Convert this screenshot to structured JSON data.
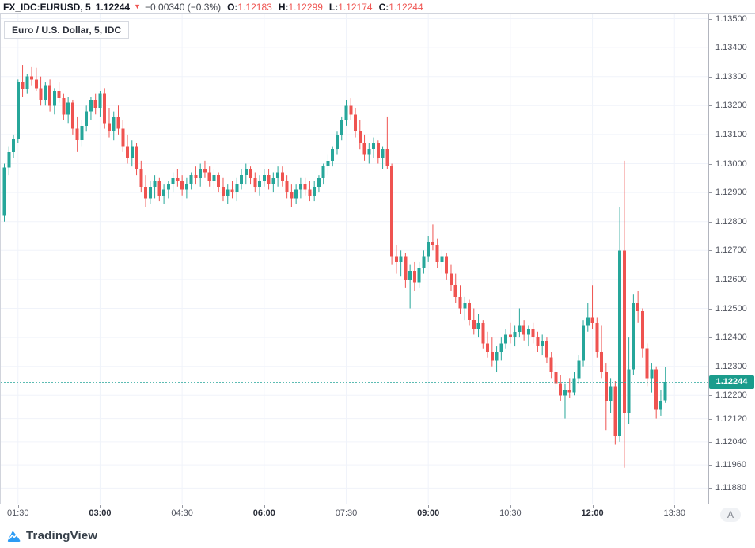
{
  "header": {
    "symbol": "FX_IDC:EURUSD, 5",
    "last_price": "1.12244",
    "direction": "down",
    "change": "−0.00340 (−0.3%)",
    "ohlc": {
      "o_label": "O:",
      "o_value": "1.12183",
      "h_label": "H:",
      "h_value": "1.12299",
      "l_label": "L:",
      "l_value": "1.12174",
      "c_label": "C:",
      "c_value": "1.12244"
    }
  },
  "chart": {
    "title": "Euro / U.S. Dollar, 5, IDC",
    "price_axis_labels": [
      "1.13500",
      "1.13400",
      "1.13300",
      "1.13200",
      "1.13100",
      "1.13000",
      "1.12900",
      "1.12800",
      "1.12700",
      "1.12600",
      "1.12500",
      "1.12400",
      "1.12300",
      "1.12200",
      "1.12120",
      "1.12040",
      "1.11960",
      "1.11880"
    ],
    "current_price": "1.12244",
    "time_axis_labels": [
      {
        "label": "01:30",
        "index": 3,
        "bold": false
      },
      {
        "label": "03:00",
        "index": 21,
        "bold": true
      },
      {
        "label": "04:30",
        "index": 39,
        "bold": false
      },
      {
        "label": "06:00",
        "index": 57,
        "bold": true
      },
      {
        "label": "07:30",
        "index": 75,
        "bold": false
      },
      {
        "label": "09:00",
        "index": 93,
        "bold": true
      },
      {
        "label": "10:30",
        "index": 111,
        "bold": false
      },
      {
        "label": "12:00",
        "index": 129,
        "bold": true
      },
      {
        "label": "13:30",
        "index": 147,
        "bold": false
      }
    ],
    "auto_button": "A"
  },
  "footer": {
    "brand": "TradingView"
  },
  "colors": {
    "up": "#26a69a",
    "down": "#ef5350",
    "price_line": "#26a69a",
    "tag_bg": "#1b9c8c",
    "grid": "#f0f3fa",
    "axis_line": "#b2b5be",
    "red_text": "#ef5350"
  },
  "chart_data": {
    "type": "candlestick",
    "symbol": "EURUSD",
    "exchange": "FX_IDC",
    "interval": "5 minute",
    "title": "Euro / U.S. Dollar, 5, IDC",
    "start_time": "01:15",
    "interval_minutes": 5,
    "price_line": 1.12244,
    "ylim": [
      1.1182,
      1.1352
    ],
    "last_bar": {
      "open": 1.12183,
      "high": 1.12299,
      "low": 1.12174,
      "close": 1.12244
    },
    "ohlc": [
      [
        1.1282,
        1.13,
        1.128,
        1.12986
      ],
      [
        1.12986,
        1.1306,
        1.1296,
        1.1304
      ],
      [
        1.1304,
        1.131,
        1.1302,
        1.13085
      ],
      [
        1.13085,
        1.1329,
        1.1307,
        1.1328
      ],
      [
        1.1328,
        1.1334,
        1.1323,
        1.13255
      ],
      [
        1.13255,
        1.1331,
        1.1324,
        1.133
      ],
      [
        1.133,
        1.13335,
        1.1327,
        1.1329
      ],
      [
        1.1329,
        1.1333,
        1.1325,
        1.1326
      ],
      [
        1.1326,
        1.133,
        1.132,
        1.1322
      ],
      [
        1.1322,
        1.1328,
        1.132,
        1.1327
      ],
      [
        1.1327,
        1.1329,
        1.1318,
        1.132
      ],
      [
        1.132,
        1.1326,
        1.1317,
        1.1325
      ],
      [
        1.1325,
        1.1328,
        1.1321,
        1.13225
      ],
      [
        1.13225,
        1.1324,
        1.1315,
        1.1317
      ],
      [
        1.1317,
        1.1323,
        1.1314,
        1.1321
      ],
      [
        1.1321,
        1.1322,
        1.131,
        1.1312
      ],
      [
        1.1312,
        1.1316,
        1.1304,
        1.1308
      ],
      [
        1.1308,
        1.1315,
        1.1306,
        1.1313
      ],
      [
        1.1313,
        1.132,
        1.1311,
        1.1318
      ],
      [
        1.1318,
        1.1323,
        1.1315,
        1.1322
      ],
      [
        1.1322,
        1.1324,
        1.1317,
        1.1319
      ],
      [
        1.1319,
        1.1325,
        1.1316,
        1.1324
      ],
      [
        1.1324,
        1.1326,
        1.1312,
        1.1314
      ],
      [
        1.1314,
        1.1319,
        1.1309,
        1.1311
      ],
      [
        1.1311,
        1.1318,
        1.1308,
        1.1316
      ],
      [
        1.1316,
        1.132,
        1.131,
        1.1312
      ],
      [
        1.1312,
        1.1315,
        1.1304,
        1.1306
      ],
      [
        1.1306,
        1.131,
        1.13,
        1.1302
      ],
      [
        1.1302,
        1.1308,
        1.1299,
        1.1306
      ],
      [
        1.1306,
        1.1307,
        1.1296,
        1.1298
      ],
      [
        1.1298,
        1.1301,
        1.129,
        1.1292
      ],
      [
        1.1292,
        1.1296,
        1.1285,
        1.1288
      ],
      [
        1.1288,
        1.1294,
        1.1286,
        1.1292
      ],
      [
        1.1292,
        1.1296,
        1.1288,
        1.1294
      ],
      [
        1.1294,
        1.1295,
        1.1287,
        1.1289
      ],
      [
        1.1289,
        1.1293,
        1.1286,
        1.1291
      ],
      [
        1.1291,
        1.1294,
        1.1288,
        1.1293
      ],
      [
        1.1293,
        1.1297,
        1.129,
        1.1295
      ],
      [
        1.1295,
        1.1298,
        1.1292,
        1.1294
      ],
      [
        1.1294,
        1.1296,
        1.1289,
        1.1291
      ],
      [
        1.1291,
        1.1295,
        1.1288,
        1.1293
      ],
      [
        1.1293,
        1.1297,
        1.1291,
        1.1296
      ],
      [
        1.1296,
        1.1299,
        1.1293,
        1.1295
      ],
      [
        1.1295,
        1.13,
        1.1292,
        1.1298
      ],
      [
        1.1298,
        1.1301,
        1.1295,
        1.1297
      ],
      [
        1.1297,
        1.1299,
        1.1292,
        1.1294
      ],
      [
        1.1294,
        1.1298,
        1.1291,
        1.1296
      ],
      [
        1.1296,
        1.1297,
        1.129,
        1.1292
      ],
      [
        1.1292,
        1.1295,
        1.1287,
        1.1289
      ],
      [
        1.1289,
        1.1293,
        1.1286,
        1.1291
      ],
      [
        1.1291,
        1.1294,
        1.1288,
        1.129
      ],
      [
        1.129,
        1.1295,
        1.1287,
        1.1293
      ],
      [
        1.1293,
        1.1298,
        1.1291,
        1.1296
      ],
      [
        1.1296,
        1.13,
        1.1293,
        1.1298
      ],
      [
        1.1298,
        1.1299,
        1.1293,
        1.1295
      ],
      [
        1.1295,
        1.1297,
        1.129,
        1.1292
      ],
      [
        1.1292,
        1.1296,
        1.1289,
        1.1294
      ],
      [
        1.1294,
        1.1298,
        1.1292,
        1.1296
      ],
      [
        1.1296,
        1.1298,
        1.1291,
        1.1293
      ],
      [
        1.1293,
        1.1297,
        1.129,
        1.1295
      ],
      [
        1.1295,
        1.1299,
        1.1292,
        1.1297
      ],
      [
        1.1297,
        1.1299,
        1.1292,
        1.1294
      ],
      [
        1.1294,
        1.1296,
        1.1288,
        1.129
      ],
      [
        1.129,
        1.1293,
        1.1285,
        1.1288
      ],
      [
        1.1288,
        1.1293,
        1.1286,
        1.1291
      ],
      [
        1.1291,
        1.1295,
        1.1288,
        1.1293
      ],
      [
        1.1293,
        1.1295,
        1.1289,
        1.1291
      ],
      [
        1.1291,
        1.1294,
        1.1287,
        1.1289
      ],
      [
        1.1289,
        1.1294,
        1.1287,
        1.1292
      ],
      [
        1.1292,
        1.1296,
        1.129,
        1.1295
      ],
      [
        1.1295,
        1.13,
        1.1293,
        1.1299
      ],
      [
        1.1299,
        1.1303,
        1.1296,
        1.1301
      ],
      [
        1.1301,
        1.1306,
        1.1299,
        1.1305
      ],
      [
        1.1305,
        1.1311,
        1.1303,
        1.131
      ],
      [
        1.131,
        1.1316,
        1.1308,
        1.1315
      ],
      [
        1.1315,
        1.1322,
        1.1313,
        1.132
      ],
      [
        1.132,
        1.13225,
        1.1315,
        1.1317
      ],
      [
        1.1317,
        1.1319,
        1.1309,
        1.1311
      ],
      [
        1.1311,
        1.1315,
        1.1305,
        1.1307
      ],
      [
        1.1307,
        1.131,
        1.1301,
        1.1303
      ],
      [
        1.1303,
        1.1307,
        1.13,
        1.1305
      ],
      [
        1.1305,
        1.1309,
        1.1302,
        1.1307
      ],
      [
        1.1307,
        1.1308,
        1.13,
        1.1302
      ],
      [
        1.1302,
        1.1306,
        1.1298,
        1.1305
      ],
      [
        1.1305,
        1.1316,
        1.1298,
        1.1299
      ],
      [
        1.1299,
        1.13,
        1.1265,
        1.1268
      ],
      [
        1.1268,
        1.1272,
        1.1262,
        1.1266
      ],
      [
        1.1266,
        1.127,
        1.1261,
        1.1268
      ],
      [
        1.1268,
        1.1269,
        1.1257,
        1.126
      ],
      [
        1.126,
        1.1265,
        1.125,
        1.1263
      ],
      [
        1.1263,
        1.1266,
        1.1256,
        1.1259
      ],
      [
        1.1259,
        1.1266,
        1.1257,
        1.1264
      ],
      [
        1.1264,
        1.127,
        1.1262,
        1.1268
      ],
      [
        1.1268,
        1.1275,
        1.1266,
        1.1273
      ],
      [
        1.1273,
        1.1279,
        1.127,
        1.1272
      ],
      [
        1.1272,
        1.1274,
        1.1264,
        1.1266
      ],
      [
        1.1266,
        1.127,
        1.1262,
        1.1268
      ],
      [
        1.1268,
        1.1269,
        1.126,
        1.1262
      ],
      [
        1.1262,
        1.1265,
        1.1256,
        1.1258
      ],
      [
        1.1258,
        1.1262,
        1.1252,
        1.1254
      ],
      [
        1.1254,
        1.1258,
        1.1248,
        1.125
      ],
      [
        1.125,
        1.1254,
        1.1246,
        1.1252
      ],
      [
        1.1252,
        1.1253,
        1.1244,
        1.1246
      ],
      [
        1.1246,
        1.125,
        1.1241,
        1.1243
      ],
      [
        1.1243,
        1.1248,
        1.124,
        1.1245
      ],
      [
        1.1245,
        1.1246,
        1.1236,
        1.1238
      ],
      [
        1.1238,
        1.1242,
        1.1233,
        1.1235
      ],
      [
        1.1235,
        1.124,
        1.123,
        1.1232
      ],
      [
        1.1232,
        1.1237,
        1.1228,
        1.1235
      ],
      [
        1.1235,
        1.124,
        1.1232,
        1.1238
      ],
      [
        1.1238,
        1.1243,
        1.1236,
        1.1241
      ],
      [
        1.1241,
        1.1245,
        1.1238,
        1.124
      ],
      [
        1.124,
        1.1244,
        1.1237,
        1.1242
      ],
      [
        1.1242,
        1.125,
        1.124,
        1.1244
      ],
      [
        1.1244,
        1.1246,
        1.1239,
        1.1241
      ],
      [
        1.1241,
        1.1244,
        1.1237,
        1.1243
      ],
      [
        1.1243,
        1.1245,
        1.1238,
        1.124
      ],
      [
        1.124,
        1.1242,
        1.1235,
        1.1237
      ],
      [
        1.1237,
        1.1241,
        1.1234,
        1.1239
      ],
      [
        1.1239,
        1.124,
        1.1231,
        1.1233
      ],
      [
        1.1233,
        1.1235,
        1.1226,
        1.1228
      ],
      [
        1.1228,
        1.1231,
        1.1222,
        1.1224
      ],
      [
        1.1224,
        1.1227,
        1.1218,
        1.122
      ],
      [
        1.122,
        1.1224,
        1.1212,
        1.1222
      ],
      [
        1.1222,
        1.1226,
        1.1219,
        1.1221
      ],
      [
        1.1221,
        1.1228,
        1.122,
        1.1226
      ],
      [
        1.1226,
        1.1234,
        1.1224,
        1.1232
      ],
      [
        1.1232,
        1.1246,
        1.123,
        1.1244
      ],
      [
        1.1244,
        1.1252,
        1.1242,
        1.1247
      ],
      [
        1.1247,
        1.1258,
        1.1243,
        1.1245
      ],
      [
        1.1245,
        1.1247,
        1.1233,
        1.1235
      ],
      [
        1.1235,
        1.1244,
        1.1226,
        1.1228
      ],
      [
        1.1228,
        1.1231,
        1.1208,
        1.1218
      ],
      [
        1.1218,
        1.1226,
        1.1214,
        1.1223
      ],
      [
        1.1223,
        1.1225,
        1.1203,
        1.1206
      ],
      [
        1.1206,
        1.1285,
        1.1204,
        1.127
      ],
      [
        1.127,
        1.1301,
        1.1195,
        1.1214
      ],
      [
        1.1214,
        1.124,
        1.121,
        1.1229
      ],
      [
        1.1229,
        1.1255,
        1.1227,
        1.1252
      ],
      [
        1.1252,
        1.1256,
        1.1245,
        1.1249
      ],
      [
        1.1249,
        1.125,
        1.1233,
        1.1236
      ],
      [
        1.1236,
        1.1238,
        1.1223,
        1.1226
      ],
      [
        1.1226,
        1.1231,
        1.1221,
        1.1229
      ],
      [
        1.1229,
        1.123,
        1.1212,
        1.1215
      ],
      [
        1.1215,
        1.1222,
        1.1213,
        1.1218
      ],
      [
        1.12183,
        1.12299,
        1.12174,
        1.12244
      ]
    ]
  }
}
